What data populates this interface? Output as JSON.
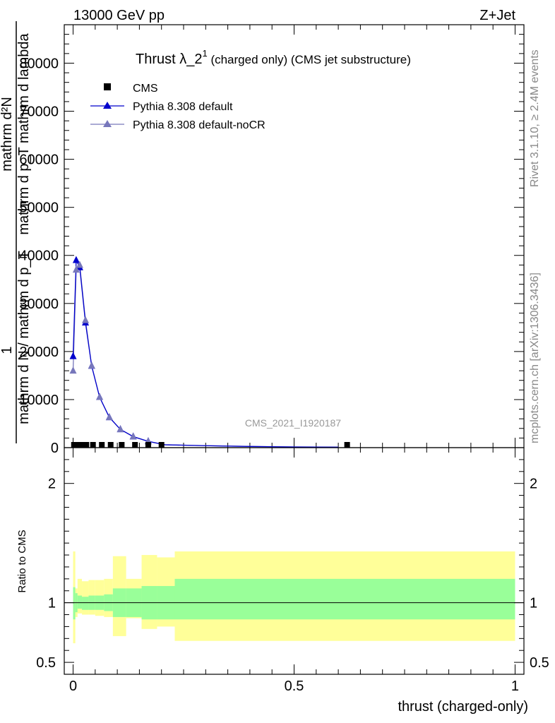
{
  "header": {
    "left": "13000 GeV pp",
    "right": "Z+Jet"
  },
  "side": {
    "rivet": "Rivet 3.1.10, ≥ 2.4M events",
    "mcplots": "mcplots.cern.ch [arXiv:1306.3436]"
  },
  "colors": {
    "cms": "#000000",
    "default": "#0000cc",
    "nocr": "#7777bb",
    "band_inner": "#99ff99",
    "band_outer": "#ffff99",
    "watermark": "#999999"
  },
  "chart_data": [
    {
      "type": "line",
      "title_main": "Thrust λ_2",
      "title_sup": "1",
      "title_rest": " (charged only) (CMS jet substructure)",
      "watermark": "CMS_2021_I1920187",
      "ylabel_num": "mathrm d²N",
      "ylabel_den": "mathrm d p_T mathrm d lambda",
      "ylabel_frac_num": "1",
      "ylabel_frac_den": "mathrm d N / mathrm d p_T",
      "ylim": [
        0,
        88000
      ],
      "yticks": [
        0,
        10000,
        20000,
        30000,
        40000,
        50000,
        60000,
        70000,
        80000
      ],
      "ytick_labels": [
        "0",
        "10000",
        "20000",
        "30000",
        "40000",
        "50000",
        "60000",
        "70000",
        "80000"
      ],
      "xlim": [
        -0.02,
        1.02
      ],
      "legend": {
        "position": "top-left",
        "entries": [
          "CMS",
          "Pythia 8.308 default",
          "Pythia 8.308 default-noCR"
        ]
      },
      "series": [
        {
          "name": "CMS",
          "marker": "square",
          "x": [
            0.002,
            0.01,
            0.02,
            0.03,
            0.045,
            0.065,
            0.085,
            0.11,
            0.14,
            0.17,
            0.2,
            0.62
          ],
          "y": [
            180,
            200,
            200,
            190,
            160,
            120,
            90,
            60,
            40,
            25,
            12,
            0
          ]
        },
        {
          "name": "Pythia 8.308 default",
          "marker": "triangle",
          "x": [
            0.0,
            0.007,
            0.015,
            0.028,
            0.042,
            0.06,
            0.082,
            0.107,
            0.136,
            0.17,
            0.208,
            0.3,
            0.4,
            0.5,
            0.6
          ],
          "y": [
            19000,
            39000,
            37500,
            26000,
            17000,
            10500,
            6300,
            3800,
            2300,
            1300,
            600,
            400,
            250,
            150,
            100
          ]
        },
        {
          "name": "Pythia 8.308 default-noCR",
          "marker": "triangle",
          "x": [
            0.0,
            0.007,
            0.015,
            0.028,
            0.042,
            0.06,
            0.082,
            0.107,
            0.136,
            0.17,
            0.208,
            0.3,
            0.4,
            0.5,
            0.6
          ],
          "y": [
            16000,
            37000,
            38000,
            26500,
            17000,
            10500,
            6300,
            3800,
            2300,
            1300,
            600,
            400,
            250,
            150,
            100
          ]
        }
      ]
    },
    {
      "type": "area",
      "ylabel": "Ratio to CMS",
      "xlabel": "thrust (charged-only)",
      "ylim": [
        0.4,
        2.3
      ],
      "yticks": [
        0.5,
        1,
        2
      ],
      "ytick_labels": [
        "0.5",
        "1",
        "2"
      ],
      "xlim": [
        -0.02,
        1.02
      ],
      "xticks": [
        0,
        0.5,
        1
      ],
      "xtick_labels": [
        "0",
        "0.5",
        "1"
      ],
      "reference_line": 1,
      "bins": [
        {
          "x0": 0.0,
          "x1": 0.005,
          "inner": [
            0.86,
            1.13
          ],
          "outer": [
            0.66,
            1.43
          ]
        },
        {
          "x0": 0.005,
          "x1": 0.01,
          "inner": [
            0.92,
            1.08
          ],
          "outer": [
            0.88,
            1.12
          ]
        },
        {
          "x0": 0.01,
          "x1": 0.02,
          "inner": [
            0.95,
            1.06
          ],
          "outer": [
            0.91,
            1.2
          ]
        },
        {
          "x0": 0.02,
          "x1": 0.035,
          "inner": [
            0.94,
            1.05
          ],
          "outer": [
            0.9,
            1.18
          ]
        },
        {
          "x0": 0.035,
          "x1": 0.05,
          "inner": [
            0.94,
            1.06
          ],
          "outer": [
            0.9,
            1.19
          ]
        },
        {
          "x0": 0.05,
          "x1": 0.07,
          "inner": [
            0.94,
            1.06
          ],
          "outer": [
            0.89,
            1.19
          ]
        },
        {
          "x0": 0.07,
          "x1": 0.09,
          "inner": [
            0.93,
            1.07
          ],
          "outer": [
            0.88,
            1.2
          ]
        },
        {
          "x0": 0.09,
          "x1": 0.12,
          "inner": [
            0.88,
            1.12
          ],
          "outer": [
            0.72,
            1.39
          ]
        },
        {
          "x0": 0.12,
          "x1": 0.155,
          "inner": [
            0.88,
            1.12
          ],
          "outer": [
            0.87,
            1.2
          ]
        },
        {
          "x0": 0.155,
          "x1": 0.19,
          "inner": [
            0.86,
            1.14
          ],
          "outer": [
            0.78,
            1.4
          ]
        },
        {
          "x0": 0.19,
          "x1": 0.23,
          "inner": [
            0.86,
            1.14
          ],
          "outer": [
            0.8,
            1.38
          ]
        },
        {
          "x0": 0.23,
          "x1": 1.0,
          "inner": [
            0.86,
            1.2
          ],
          "outer": [
            0.68,
            1.43
          ]
        }
      ]
    }
  ]
}
